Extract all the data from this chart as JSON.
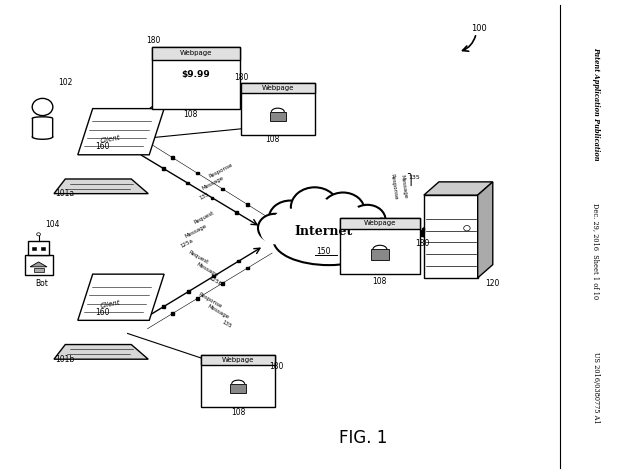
{
  "bg_color": "#ffffff",
  "fig_width": 6.3,
  "fig_height": 4.73,
  "dpi": 100,
  "sidebar_text_lines": [
    "Patent Application Publication",
    "Dec. 29, 2016  Sheet 1 of 10",
    "US 2016/0380775 A1"
  ],
  "fig_label": "FIG. 1",
  "ref_100": "100"
}
